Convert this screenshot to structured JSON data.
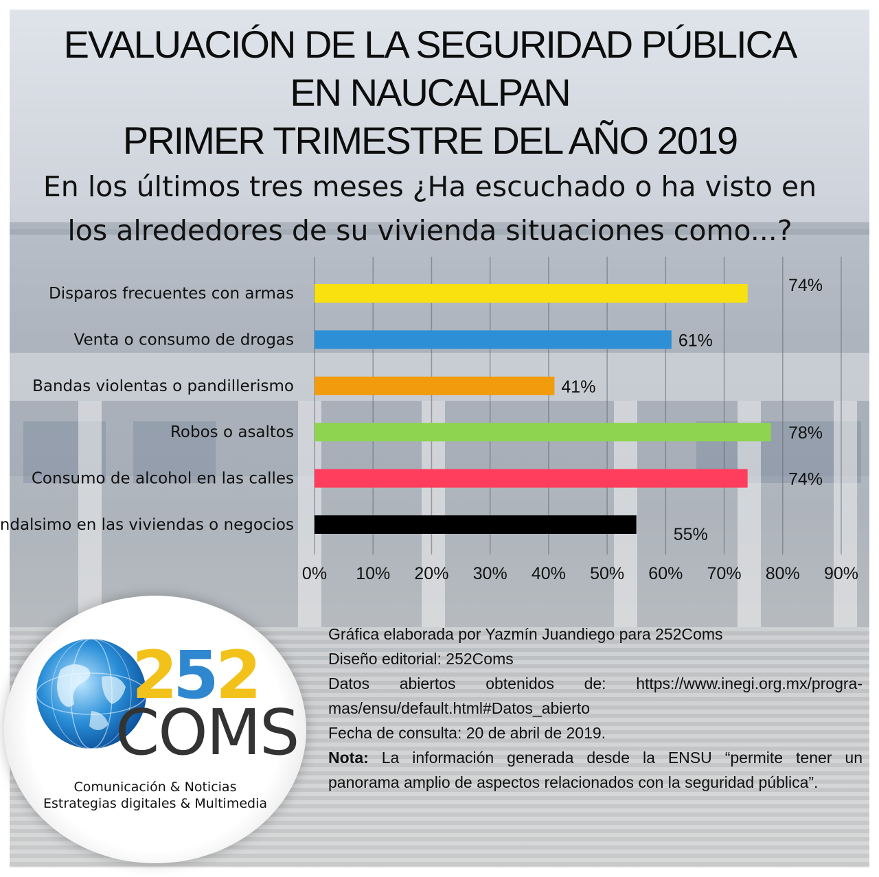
{
  "title": {
    "line1": "EVALUACIÓN DE LA SEGURIDAD PÚBLICA",
    "line2": "EN NAUCALPAN",
    "line3": "PRIMER TRIMESTRE DEL AÑO 2019"
  },
  "question": {
    "line1": "En los últimos tres meses ¿Ha escuchado o ha visto en",
    "line2": "los alrededores de su vivienda situaciones como...?"
  },
  "chart_data": {
    "type": "bar",
    "orientation": "horizontal",
    "categories": [
      "Disparos frecuentes con armas",
      "Venta o consumo de drogas",
      "Bandas violentas o pandillerismo",
      "Robos o asaltos",
      "Consumo de alcohol en las calles",
      "Vandalsimo en las viviendas o negocios"
    ],
    "values": [
      74,
      61,
      41,
      78,
      74,
      55
    ],
    "value_labels": [
      "74%",
      "61%",
      "41%",
      "78%",
      "74%",
      "55%"
    ],
    "colors": [
      "#f9e10f",
      "#2d8fd6",
      "#f29b0c",
      "#8fd451",
      "#ff3d5c",
      "#000000"
    ],
    "xlim": [
      0,
      90
    ],
    "x_ticks": [
      "0%",
      "10%",
      "20%",
      "30%",
      "40%",
      "50%",
      "60%",
      "70%",
      "80%",
      "90%"
    ],
    "grid": true
  },
  "logo": {
    "digit1": "2",
    "digit2": "5",
    "digit3": "2",
    "word": "COMS",
    "tagline1": "Comunicación & Noticias",
    "tagline2": "Estrategias digitales & Multimedia",
    "colors": {
      "yellow": "#f2c21b",
      "blue": "#2f87d0"
    }
  },
  "credits": {
    "line1": "Gráfica elaborada por Yazmín Juandiego para 252Coms",
    "line2": "Diseño editorial: 252Coms",
    "line3": "Datos abiertos obtenidos de: https://www.inegi.org.mx/progra-",
    "line4": "mas/ensu/default.html#Datos_abierto",
    "line5": "Fecha de consulta: 20 de abril de 2019.",
    "note_label": "Nota:",
    "note_line1": "La información generada desde la ENSU “permite tener un",
    "note_line2": "panorama amplio de aspectos relacionados con la seguridad pública”."
  }
}
